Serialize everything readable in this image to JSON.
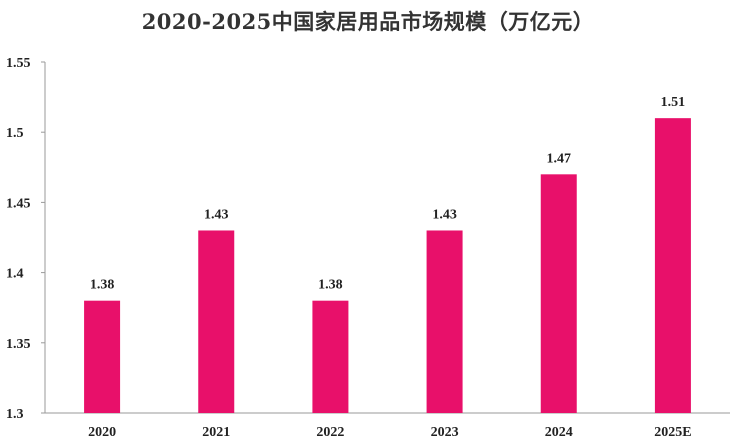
{
  "chart_data": {
    "type": "bar",
    "title": "2020-2025中国家居用品市场规模（万亿元）",
    "categories": [
      "2020",
      "2021",
      "2022",
      "2023",
      "2024",
      "2025E"
    ],
    "values": [
      1.38,
      1.43,
      1.38,
      1.43,
      1.47,
      1.51
    ],
    "value_labels": [
      "1.38",
      "1.43",
      "1.38",
      "1.43",
      "1.47",
      "1.51"
    ],
    "xlabel": "",
    "ylabel": "",
    "ylim": [
      1.3,
      1.55
    ],
    "yticks": [
      1.3,
      1.35,
      1.4,
      1.45,
      1.5,
      1.55
    ],
    "ytick_labels": [
      "1.3",
      "1.35",
      "1.4",
      "1.45",
      "1.5",
      "1.55"
    ],
    "grid": false,
    "legend": "none",
    "bar_color": "#E8106A"
  }
}
